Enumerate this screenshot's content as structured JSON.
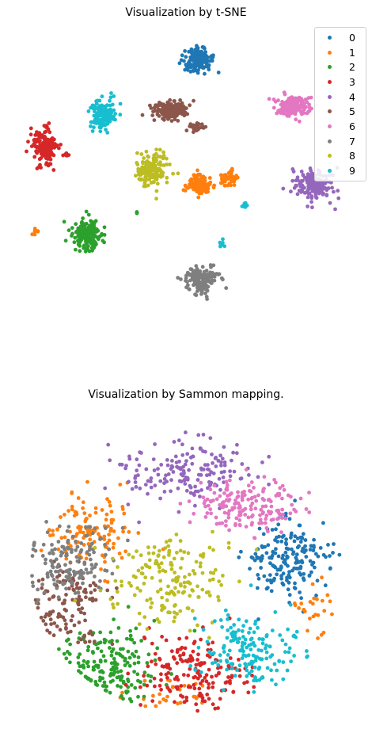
{
  "chart_data": [
    {
      "type": "scatter",
      "title": "Visualization by t-SNE",
      "xlabel": "",
      "ylabel": "",
      "axes_visible": false,
      "grid": false,
      "legend_placement": "top-right",
      "series": [
        {
          "name": "0",
          "color": "#1f77b4",
          "clusters": [
            {
              "cx": 0.09,
              "cy": 0.84,
              "sx": 0.045,
              "sy": 0.03,
              "n": 170
            }
          ]
        },
        {
          "name": "1",
          "color": "#ff7f0e",
          "clusters": [
            {
              "cx": 0.1,
              "cy": 0.24,
              "sx": 0.035,
              "sy": 0.025,
              "n": 120
            },
            {
              "cx": 0.28,
              "cy": 0.27,
              "sx": 0.025,
              "sy": 0.015,
              "n": 50
            },
            {
              "cx": -0.88,
              "cy": 0.01,
              "sx": 0.01,
              "sy": 0.01,
              "n": 8
            }
          ]
        },
        {
          "name": "2",
          "color": "#2ca02c",
          "clusters": [
            {
              "cx": -0.57,
              "cy": -0.01,
              "sx": 0.045,
              "sy": 0.04,
              "n": 170
            },
            {
              "cx": -0.27,
              "cy": 0.1,
              "sx": 0.004,
              "sy": 0.004,
              "n": 3
            }
          ]
        },
        {
          "name": "3",
          "color": "#d62728",
          "clusters": [
            {
              "cx": -0.83,
              "cy": 0.42,
              "sx": 0.035,
              "sy": 0.045,
              "n": 165
            },
            {
              "cx": -0.7,
              "cy": 0.38,
              "sx": 0.008,
              "sy": 0.008,
              "n": 6
            }
          ]
        },
        {
          "name": "4",
          "color": "#9467bd",
          "clusters": [
            {
              "cx": 0.8,
              "cy": 0.24,
              "sx": 0.06,
              "sy": 0.04,
              "n": 170
            }
          ]
        },
        {
          "name": "5",
          "color": "#8c564b",
          "clusters": [
            {
              "cx": -0.08,
              "cy": 0.6,
              "sx": 0.055,
              "sy": 0.025,
              "n": 150
            },
            {
              "cx": 0.08,
              "cy": 0.52,
              "sx": 0.025,
              "sy": 0.015,
              "n": 30
            }
          ]
        },
        {
          "name": "6",
          "color": "#e377c2",
          "clusters": [
            {
              "cx": 0.67,
              "cy": 0.62,
              "sx": 0.05,
              "sy": 0.025,
              "n": 175
            }
          ]
        },
        {
          "name": "7",
          "color": "#7f7f7f",
          "clusters": [
            {
              "cx": 0.12,
              "cy": -0.22,
              "sx": 0.05,
              "sy": 0.03,
              "n": 165
            }
          ]
        },
        {
          "name": "8",
          "color": "#bcbd22",
          "clusters": [
            {
              "cx": -0.18,
              "cy": 0.31,
              "sx": 0.045,
              "sy": 0.04,
              "n": 165
            }
          ]
        },
        {
          "name": "9",
          "color": "#17becf",
          "clusters": [
            {
              "cx": -0.48,
              "cy": 0.58,
              "sx": 0.04,
              "sy": 0.035,
              "n": 150
            },
            {
              "cx": 0.38,
              "cy": 0.14,
              "sx": 0.008,
              "sy": 0.008,
              "n": 10
            },
            {
              "cx": 0.24,
              "cy": -0.05,
              "sx": 0.008,
              "sy": 0.01,
              "n": 8
            }
          ]
        }
      ],
      "xlim": [
        -1,
        1
      ],
      "ylim": [
        -0.5,
        1
      ]
    },
    {
      "type": "scatter",
      "title": "Visualization by Sammon mapping.",
      "xlabel": "",
      "ylabel": "",
      "axes_visible": false,
      "grid": false,
      "legend": false,
      "series": [
        {
          "name": "0",
          "color": "#1f77b4",
          "clusters": [
            {
              "cx": 0.62,
              "cy": 0.05,
              "sx": 0.12,
              "sy": 0.12,
              "n": 180
            }
          ]
        },
        {
          "name": "1",
          "color": "#ff7f0e",
          "clusters": [
            {
              "cx": -0.6,
              "cy": 0.25,
              "sx": 0.15,
              "sy": 0.12,
              "n": 120
            },
            {
              "cx": 0.8,
              "cy": -0.3,
              "sx": 0.08,
              "sy": 0.08,
              "n": 25
            },
            {
              "cx": -0.1,
              "cy": -0.85,
              "sx": 0.15,
              "sy": 0.05,
              "n": 30
            }
          ]
        },
        {
          "name": "2",
          "color": "#2ca02c",
          "clusters": [
            {
              "cx": -0.45,
              "cy": -0.62,
              "sx": 0.15,
              "sy": 0.13,
              "n": 180
            }
          ]
        },
        {
          "name": "3",
          "color": "#d62728",
          "clusters": [
            {
              "cx": 0.05,
              "cy": -0.68,
              "sx": 0.17,
              "sy": 0.12,
              "n": 175
            }
          ]
        },
        {
          "name": "4",
          "color": "#9467bd",
          "clusters": [
            {
              "cx": 0.0,
              "cy": 0.65,
              "sx": 0.2,
              "sy": 0.1,
              "n": 170
            }
          ]
        },
        {
          "name": "5",
          "color": "#8c564b",
          "clusters": [
            {
              "cx": -0.72,
              "cy": -0.25,
              "sx": 0.12,
              "sy": 0.13,
              "n": 120
            }
          ]
        },
        {
          "name": "6",
          "color": "#e377c2",
          "clusters": [
            {
              "cx": 0.38,
              "cy": 0.4,
              "sx": 0.15,
              "sy": 0.1,
              "n": 175
            }
          ]
        },
        {
          "name": "7",
          "color": "#7f7f7f",
          "clusters": [
            {
              "cx": -0.72,
              "cy": 0.05,
              "sx": 0.12,
              "sy": 0.12,
              "n": 150
            }
          ]
        },
        {
          "name": "8",
          "color": "#bcbd22",
          "clusters": [
            {
              "cx": -0.1,
              "cy": -0.05,
              "sx": 0.2,
              "sy": 0.18,
              "n": 175
            }
          ]
        },
        {
          "name": "9",
          "color": "#17becf",
          "clusters": [
            {
              "cx": 0.38,
              "cy": -0.55,
              "sx": 0.14,
              "sy": 0.12,
              "n": 165
            }
          ]
        }
      ],
      "xlim": [
        -1,
        1
      ],
      "ylim": [
        -1,
        1
      ]
    }
  ]
}
